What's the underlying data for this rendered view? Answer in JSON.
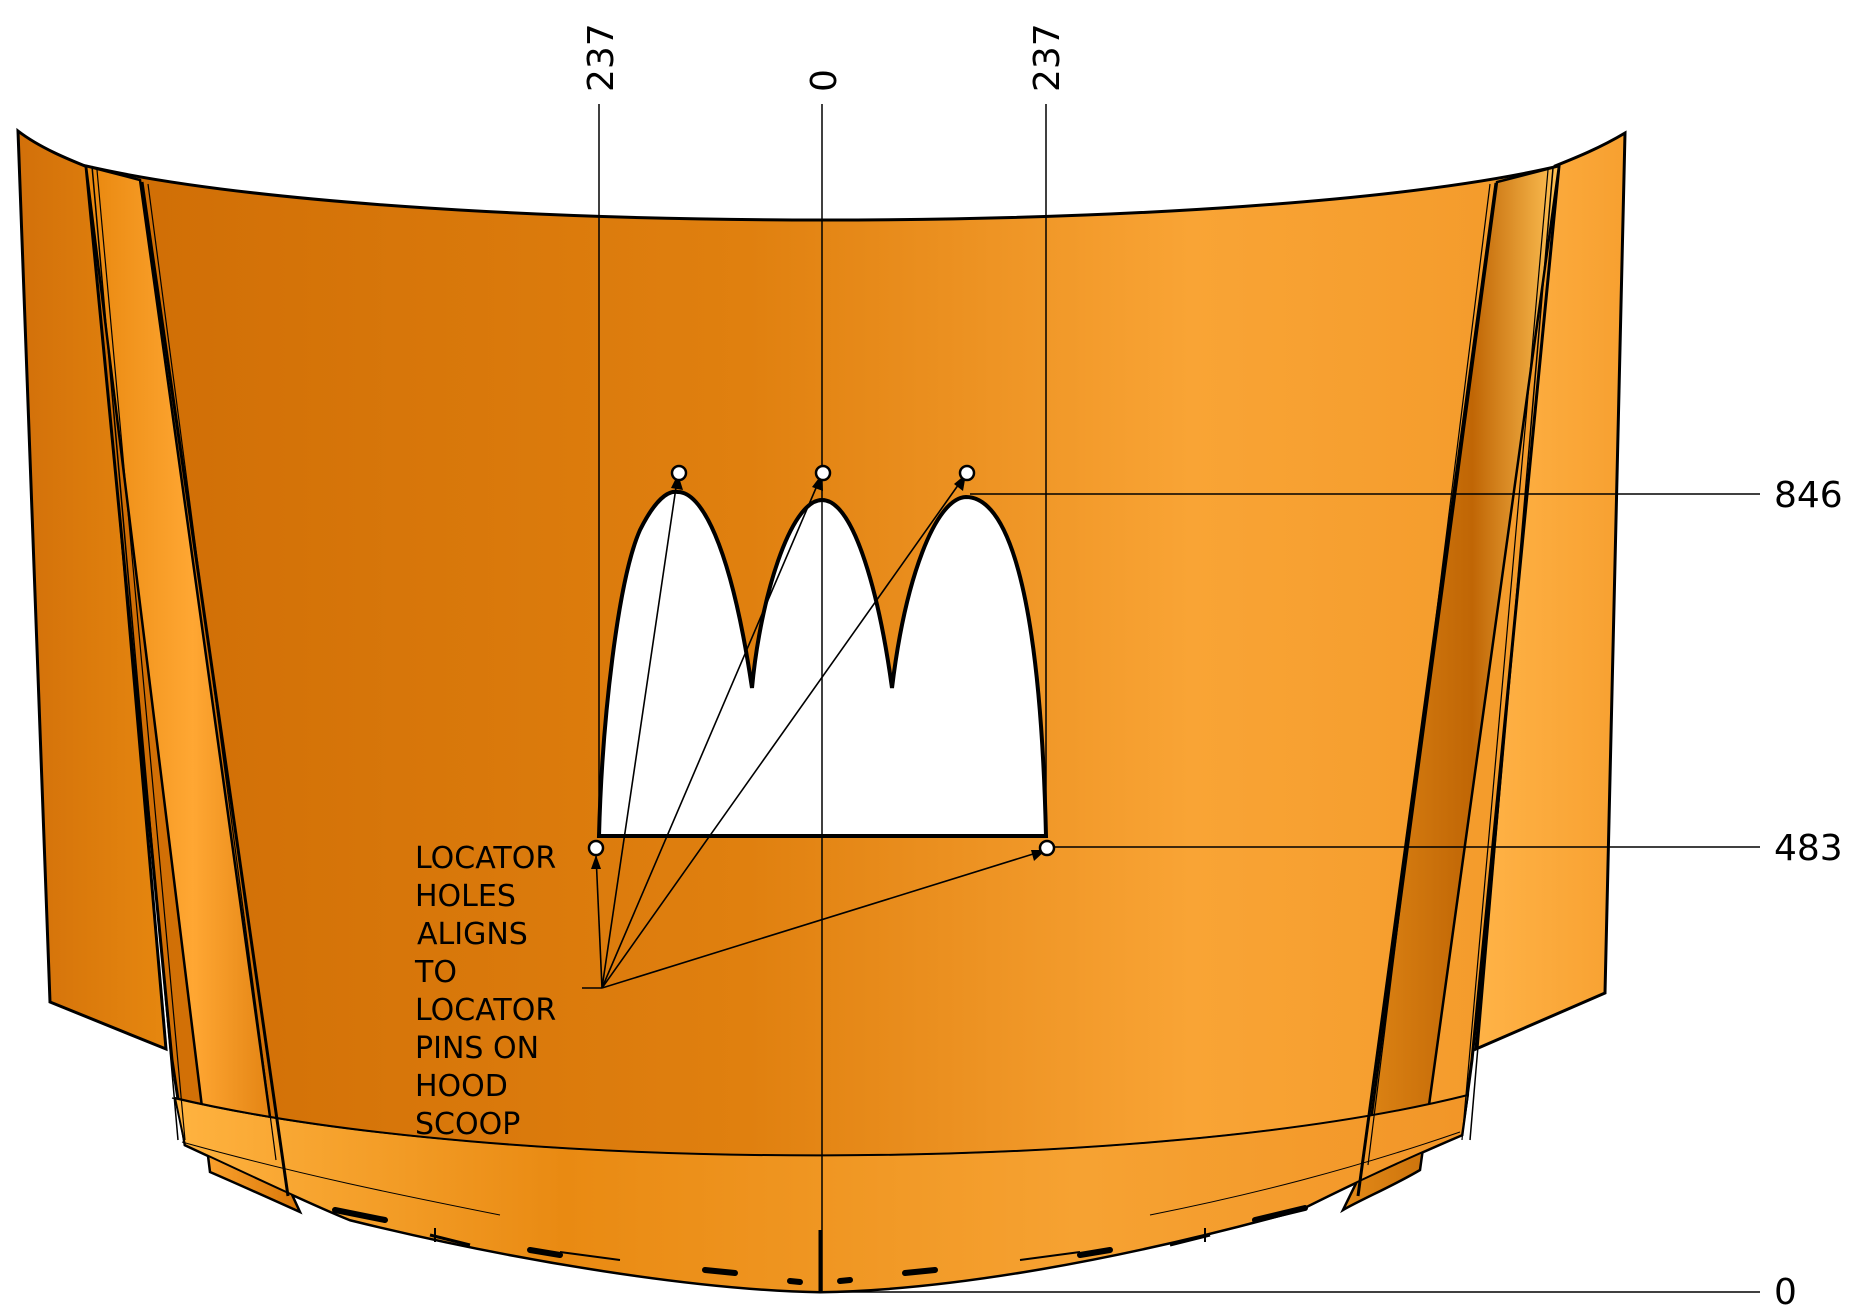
{
  "dimensions": {
    "vertical": {
      "left_237": "237",
      "center_0": "0",
      "right_237": "237"
    },
    "horizontal": {
      "top_846": "846",
      "mid_483": "483",
      "bottom_0": "0"
    }
  },
  "note_lines": [
    "LOCATOR",
    "HOLES",
    "ALIGNS",
    "TO",
    "LOCATOR",
    "PINS ON",
    "HOOD",
    "SCOOP"
  ],
  "colors": {
    "hood_dark": "#d77306",
    "hood_mid": "#e8901e",
    "hood_light": "#ffb040",
    "outline": "#000000",
    "cutout": "#ffffff"
  }
}
